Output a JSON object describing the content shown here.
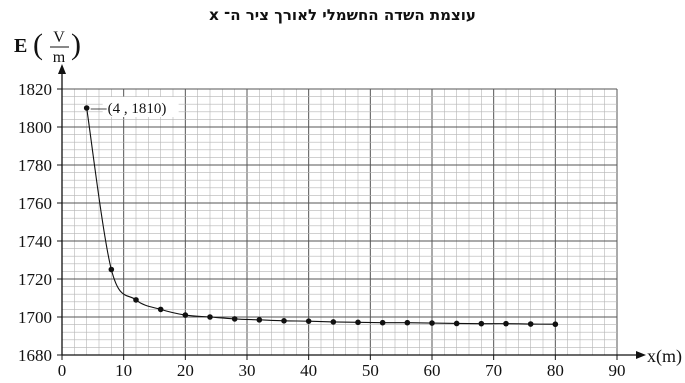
{
  "chart_data": {
    "type": "scatter",
    "title": "עוצמת השדה החשמלי לאורך ציר ה־ x",
    "ylabel": "E",
    "ylabel_unit_num": "V",
    "ylabel_unit_den": "m",
    "xlabel": "x(m)",
    "xlim": [
      0,
      90
    ],
    "ylim": [
      1680,
      1820
    ],
    "x_ticks": [
      0,
      10,
      20,
      30,
      40,
      50,
      60,
      70,
      80,
      90
    ],
    "y_ticks": [
      1680,
      1700,
      1720,
      1740,
      1760,
      1780,
      1800,
      1820
    ],
    "grid": true,
    "trendline": true,
    "points": [
      {
        "x": 4,
        "y": 1810
      },
      {
        "x": 8,
        "y": 1725
      },
      {
        "x": 12,
        "y": 1709
      },
      {
        "x": 16,
        "y": 1704
      },
      {
        "x": 20,
        "y": 1701
      },
      {
        "x": 24,
        "y": 1700
      },
      {
        "x": 28,
        "y": 1699
      },
      {
        "x": 32,
        "y": 1698.5
      },
      {
        "x": 36,
        "y": 1698
      },
      {
        "x": 40,
        "y": 1697.8
      },
      {
        "x": 44,
        "y": 1697.4
      },
      {
        "x": 48,
        "y": 1697.2
      },
      {
        "x": 52,
        "y": 1697
      },
      {
        "x": 56,
        "y": 1697
      },
      {
        "x": 60,
        "y": 1696.8
      },
      {
        "x": 64,
        "y": 1696.6
      },
      {
        "x": 68,
        "y": 1696.5
      },
      {
        "x": 72,
        "y": 1696.5
      },
      {
        "x": 76,
        "y": 1696.3
      },
      {
        "x": 80,
        "y": 1696.2
      }
    ],
    "annotation": {
      "text": "(4 , 1810)",
      "x": 4,
      "y": 1810
    }
  }
}
